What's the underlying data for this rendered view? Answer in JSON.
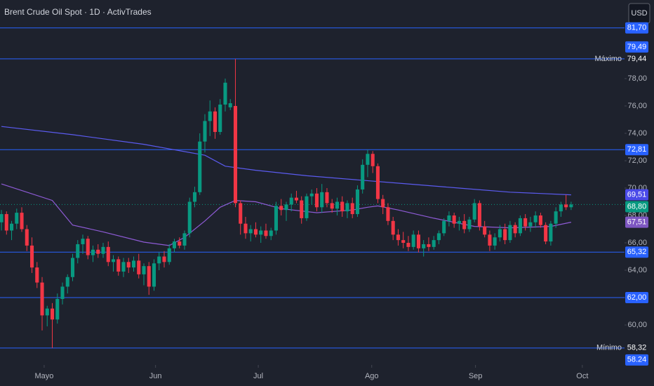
{
  "chart_data": {
    "type": "candlestick",
    "title": "Brent Crude Oil Spot · 1D · ActivTrades",
    "currency": "USD",
    "up_color": "#089981",
    "down_color": "#f23645",
    "ylim": [
      57.08,
      83.74
    ],
    "yticks": [
      {
        "value": 60,
        "label": "60,00"
      },
      {
        "value": 62,
        "label": "62,00"
      },
      {
        "value": 64,
        "label": "64,00"
      },
      {
        "value": 66,
        "label": "66,00"
      },
      {
        "value": 68,
        "label": "68,00"
      },
      {
        "value": 70,
        "label": "70,00"
      },
      {
        "value": 72,
        "label": "72,00"
      },
      {
        "value": 74,
        "label": "74,00"
      },
      {
        "value": 76,
        "label": "76,00"
      },
      {
        "value": 78,
        "label": "78,00"
      }
    ],
    "xlim": [
      -0.28,
      122.5
    ],
    "xticks": [
      {
        "value": 8.4,
        "label": "Mayo"
      },
      {
        "value": 30.3,
        "label": "Jun"
      },
      {
        "value": 50.5,
        "label": "Jul"
      },
      {
        "value": 72.8,
        "label": "Ago"
      },
      {
        "value": 93.2,
        "label": "Sep"
      },
      {
        "value": 114.2,
        "label": "Oct"
      }
    ],
    "candles": [
      {
        "open": 67.5,
        "high": 68.4,
        "low": 66.9,
        "close": 68.1
      },
      {
        "open": 68.1,
        "high": 68.3,
        "low": 66.6,
        "close": 66.9
      },
      {
        "open": 66.9,
        "high": 67.6,
        "low": 66.2,
        "close": 67.4
      },
      {
        "open": 67.4,
        "high": 68.5,
        "low": 67.0,
        "close": 68.2
      },
      {
        "open": 68.2,
        "high": 68.6,
        "low": 66.8,
        "close": 67.0
      },
      {
        "open": 67.0,
        "high": 67.3,
        "low": 65.4,
        "close": 65.8
      },
      {
        "open": 65.8,
        "high": 66.4,
        "low": 63.8,
        "close": 64.2
      },
      {
        "open": 64.2,
        "high": 64.6,
        "low": 62.7,
        "close": 63.1
      },
      {
        "open": 63.1,
        "high": 63.5,
        "low": 59.6,
        "close": 60.7
      },
      {
        "open": 60.7,
        "high": 61.4,
        "low": 59.9,
        "close": 61.2
      },
      {
        "open": 61.2,
        "high": 61.6,
        "low": 58.32,
        "close": 60.4
      },
      {
        "open": 60.4,
        "high": 62.3,
        "low": 60.1,
        "close": 61.9
      },
      {
        "open": 61.9,
        "high": 63.1,
        "low": 61.5,
        "close": 62.8
      },
      {
        "open": 62.8,
        "high": 63.7,
        "low": 62.3,
        "close": 63.5
      },
      {
        "open": 63.5,
        "high": 65.2,
        "low": 63.2,
        "close": 64.9
      },
      {
        "open": 64.9,
        "high": 66.2,
        "low": 64.5,
        "close": 65.9
      },
      {
        "open": 65.9,
        "high": 66.6,
        "low": 65.2,
        "close": 66.3
      },
      {
        "open": 66.3,
        "high": 66.5,
        "low": 64.8,
        "close": 65.1
      },
      {
        "open": 65.1,
        "high": 65.8,
        "low": 64.6,
        "close": 65.5
      },
      {
        "open": 65.5,
        "high": 65.9,
        "low": 64.9,
        "close": 65.2
      },
      {
        "open": 65.2,
        "high": 66.0,
        "low": 64.9,
        "close": 65.7
      },
      {
        "open": 65.7,
        "high": 66.1,
        "low": 64.3,
        "close": 64.6
      },
      {
        "open": 64.6,
        "high": 65.1,
        "low": 63.9,
        "close": 64.8
      },
      {
        "open": 64.8,
        "high": 65.0,
        "low": 63.6,
        "close": 63.9
      },
      {
        "open": 63.9,
        "high": 64.9,
        "low": 63.5,
        "close": 64.6
      },
      {
        "open": 64.6,
        "high": 64.9,
        "low": 63.8,
        "close": 64.2
      },
      {
        "open": 64.2,
        "high": 65.0,
        "low": 63.9,
        "close": 64.7
      },
      {
        "open": 64.7,
        "high": 65.2,
        "low": 63.4,
        "close": 63.7
      },
      {
        "open": 63.7,
        "high": 64.5,
        "low": 62.9,
        "close": 64.3
      },
      {
        "open": 64.3,
        "high": 64.6,
        "low": 62.2,
        "close": 62.8
      },
      {
        "open": 62.8,
        "high": 64.8,
        "low": 62.5,
        "close": 64.5
      },
      {
        "open": 64.5,
        "high": 65.3,
        "low": 64.0,
        "close": 65.0
      },
      {
        "open": 65.0,
        "high": 65.4,
        "low": 64.2,
        "close": 64.6
      },
      {
        "open": 64.6,
        "high": 65.9,
        "low": 64.4,
        "close": 65.6
      },
      {
        "open": 65.6,
        "high": 66.3,
        "low": 65.3,
        "close": 66.1
      },
      {
        "open": 66.1,
        "high": 66.4,
        "low": 65.6,
        "close": 65.8
      },
      {
        "open": 65.8,
        "high": 66.9,
        "low": 65.5,
        "close": 66.7
      },
      {
        "open": 66.7,
        "high": 69.3,
        "low": 66.4,
        "close": 69.0
      },
      {
        "open": 69.0,
        "high": 70.1,
        "low": 68.6,
        "close": 69.7
      },
      {
        "open": 69.7,
        "high": 74.0,
        "low": 69.5,
        "close": 73.4
      },
      {
        "open": 73.4,
        "high": 75.4,
        "low": 72.6,
        "close": 74.9
      },
      {
        "open": 74.9,
        "high": 76.4,
        "low": 73.8,
        "close": 75.6
      },
      {
        "open": 75.6,
        "high": 75.9,
        "low": 73.6,
        "close": 74.1
      },
      {
        "open": 74.1,
        "high": 76.5,
        "low": 73.9,
        "close": 76.1
      },
      {
        "open": 76.1,
        "high": 78.0,
        "low": 75.6,
        "close": 77.7
      },
      {
        "open": 75.9,
        "high": 76.5,
        "low": 75.7,
        "close": 76.2
      },
      {
        "open": 76.0,
        "high": 79.44,
        "low": 68.6,
        "close": 68.9
      },
      {
        "open": 68.9,
        "high": 69.1,
        "low": 66.6,
        "close": 67.4
      },
      {
        "open": 67.4,
        "high": 67.9,
        "low": 66.3,
        "close": 66.7
      },
      {
        "open": 66.7,
        "high": 67.3,
        "low": 66.1,
        "close": 67.0
      },
      {
        "open": 67.0,
        "high": 67.5,
        "low": 66.4,
        "close": 66.6
      },
      {
        "open": 66.6,
        "high": 67.2,
        "low": 66.0,
        "close": 66.9
      },
      {
        "open": 66.9,
        "high": 67.4,
        "low": 66.3,
        "close": 66.5
      },
      {
        "open": 66.5,
        "high": 67.1,
        "low": 66.2,
        "close": 66.9
      },
      {
        "open": 66.9,
        "high": 69.0,
        "low": 66.6,
        "close": 68.7
      },
      {
        "open": 68.7,
        "high": 69.2,
        "low": 68.0,
        "close": 68.4
      },
      {
        "open": 68.4,
        "high": 69.0,
        "low": 67.6,
        "close": 68.8
      },
      {
        "open": 68.8,
        "high": 69.6,
        "low": 68.3,
        "close": 69.3
      },
      {
        "open": 69.3,
        "high": 69.8,
        "low": 68.9,
        "close": 69.1
      },
      {
        "open": 69.1,
        "high": 69.4,
        "low": 67.4,
        "close": 67.8
      },
      {
        "open": 67.8,
        "high": 69.6,
        "low": 67.6,
        "close": 69.4
      },
      {
        "open": 69.4,
        "high": 69.9,
        "low": 68.8,
        "close": 69.6
      },
      {
        "open": 69.6,
        "high": 70.0,
        "low": 68.3,
        "close": 68.6
      },
      {
        "open": 68.6,
        "high": 70.3,
        "low": 68.2,
        "close": 69.7
      },
      {
        "open": 69.7,
        "high": 70.0,
        "low": 68.6,
        "close": 68.9
      },
      {
        "open": 68.9,
        "high": 69.2,
        "low": 68.2,
        "close": 68.5
      },
      {
        "open": 68.5,
        "high": 69.3,
        "low": 68.0,
        "close": 69.0
      },
      {
        "open": 69.0,
        "high": 69.4,
        "low": 67.9,
        "close": 68.3
      },
      {
        "open": 68.3,
        "high": 69.1,
        "low": 67.8,
        "close": 68.9
      },
      {
        "open": 68.9,
        "high": 69.3,
        "low": 67.8,
        "close": 68.1
      },
      {
        "open": 68.1,
        "high": 70.2,
        "low": 67.9,
        "close": 69.9
      },
      {
        "open": 69.9,
        "high": 72.1,
        "low": 69.6,
        "close": 71.7
      },
      {
        "open": 71.7,
        "high": 72.81,
        "low": 70.8,
        "close": 72.5
      },
      {
        "open": 72.5,
        "high": 72.7,
        "low": 71.1,
        "close": 71.6
      },
      {
        "open": 71.6,
        "high": 71.8,
        "low": 68.9,
        "close": 69.2
      },
      {
        "open": 69.2,
        "high": 69.5,
        "low": 68.1,
        "close": 68.6
      },
      {
        "open": 68.6,
        "high": 68.9,
        "low": 67.3,
        "close": 67.6
      },
      {
        "open": 67.6,
        "high": 67.9,
        "low": 66.2,
        "close": 66.6
      },
      {
        "open": 66.6,
        "high": 67.0,
        "low": 65.8,
        "close": 66.2
      },
      {
        "open": 66.2,
        "high": 66.8,
        "low": 65.6,
        "close": 66.0
      },
      {
        "open": 66.0,
        "high": 66.5,
        "low": 65.4,
        "close": 65.7
      },
      {
        "open": 65.7,
        "high": 66.9,
        "low": 65.5,
        "close": 66.6
      },
      {
        "open": 66.6,
        "high": 66.9,
        "low": 65.3,
        "close": 65.6
      },
      {
        "open": 65.6,
        "high": 66.2,
        "low": 65.0,
        "close": 65.9
      },
      {
        "open": 65.9,
        "high": 66.4,
        "low": 65.4,
        "close": 65.7
      },
      {
        "open": 65.7,
        "high": 66.5,
        "low": 65.5,
        "close": 66.2
      },
      {
        "open": 66.2,
        "high": 66.9,
        "low": 65.9,
        "close": 66.7
      },
      {
        "open": 66.7,
        "high": 67.8,
        "low": 66.5,
        "close": 67.6
      },
      {
        "open": 67.6,
        "high": 68.3,
        "low": 67.2,
        "close": 68.0
      },
      {
        "open": 68.0,
        "high": 68.2,
        "low": 67.1,
        "close": 67.4
      },
      {
        "open": 67.4,
        "high": 67.9,
        "low": 66.9,
        "close": 67.6
      },
      {
        "open": 67.6,
        "high": 68.1,
        "low": 66.7,
        "close": 67.0
      },
      {
        "open": 67.0,
        "high": 67.9,
        "low": 66.8,
        "close": 67.7
      },
      {
        "open": 67.7,
        "high": 69.2,
        "low": 67.5,
        "close": 68.9
      },
      {
        "open": 68.9,
        "high": 69.1,
        "low": 66.9,
        "close": 67.2
      },
      {
        "open": 67.2,
        "high": 67.6,
        "low": 66.4,
        "close": 66.6
      },
      {
        "open": 66.6,
        "high": 66.9,
        "low": 65.4,
        "close": 65.8
      },
      {
        "open": 65.8,
        "high": 66.7,
        "low": 65.5,
        "close": 66.4
      },
      {
        "open": 66.4,
        "high": 67.3,
        "low": 66.1,
        "close": 67.0
      },
      {
        "open": 67.0,
        "high": 67.4,
        "low": 65.9,
        "close": 66.2
      },
      {
        "open": 66.2,
        "high": 67.6,
        "low": 66.0,
        "close": 67.3
      },
      {
        "open": 67.3,
        "high": 67.5,
        "low": 66.4,
        "close": 66.7
      },
      {
        "open": 66.7,
        "high": 68.0,
        "low": 66.5,
        "close": 67.8
      },
      {
        "open": 67.8,
        "high": 68.1,
        "low": 66.9,
        "close": 67.2
      },
      {
        "open": 67.2,
        "high": 67.9,
        "low": 66.8,
        "close": 67.5
      },
      {
        "open": 67.5,
        "high": 68.3,
        "low": 67.1,
        "close": 68.0
      },
      {
        "open": 68.0,
        "high": 68.2,
        "low": 67.1,
        "close": 67.3
      },
      {
        "open": 67.3,
        "high": 67.5,
        "low": 65.9,
        "close": 66.1
      },
      {
        "open": 66.1,
        "high": 67.6,
        "low": 65.8,
        "close": 67.4
      },
      {
        "open": 67.4,
        "high": 68.6,
        "low": 67.1,
        "close": 68.3
      },
      {
        "open": 68.3,
        "high": 69.0,
        "low": 67.9,
        "close": 68.8
      },
      {
        "open": 68.8,
        "high": 69.51,
        "low": 68.4,
        "close": 68.6
      },
      {
        "open": 68.6,
        "high": 69.0,
        "low": 68.4,
        "close": 68.8
      }
    ],
    "lines": [
      {
        "color": "#5b5bf0",
        "x": [
          0,
          14,
          28,
          40,
          44,
          50,
          60,
          70,
          80,
          90,
          100,
          112
        ],
        "values": [
          74.5,
          73.9,
          73.2,
          72.4,
          71.6,
          71.3,
          70.9,
          70.6,
          70.3,
          70.0,
          69.7,
          69.51
        ]
      },
      {
        "color": "#8e5bd6",
        "x": [
          0,
          10,
          14,
          20,
          28,
          33,
          36,
          40,
          43,
          46,
          50,
          55,
          62,
          69,
          72,
          74,
          78,
          85,
          93,
          100,
          108,
          112
        ],
        "values": [
          70.3,
          69.1,
          67.3,
          66.8,
          66.05,
          65.8,
          66.4,
          67.6,
          68.6,
          69.1,
          69.0,
          68.5,
          68.2,
          68.4,
          68.6,
          68.7,
          68.4,
          67.8,
          67.2,
          67.1,
          67.2,
          67.51
        ]
      }
    ],
    "levels": [
      {
        "value": 81.7,
        "label": "81,70",
        "tag_color": "#2962ff"
      },
      {
        "value": 79.44,
        "label": "79,44",
        "note": "Máximo",
        "tag_color": "#1e222d"
      },
      {
        "value": 72.81,
        "label": "72,81",
        "tag_color": "#2962ff"
      },
      {
        "value": 65.32,
        "label": "65,32",
        "tag_color": "#2962ff"
      },
      {
        "value": 62.0,
        "label": "62,00",
        "tag_color": "#2962ff"
      },
      {
        "value": 58.32,
        "label": "58,32",
        "note": "Mínimo",
        "tag_color": "#1e222d"
      }
    ],
    "level_color": "#2962ff",
    "tags": [
      {
        "value": 79.49,
        "label": "79,49",
        "color": "#2962ff"
      },
      {
        "value": 69.51,
        "label": "69,51",
        "color": "#4a4ae8"
      },
      {
        "value": 68.8,
        "label": "68,80",
        "color": "#089981"
      },
      {
        "value": 67.51,
        "label": "67,51",
        "color": "#7e57c2"
      },
      {
        "value": 58.24,
        "label": "58.24",
        "color": "#2962ff"
      }
    ],
    "last_price": {
      "value": 68.8,
      "color": "#089981"
    }
  }
}
